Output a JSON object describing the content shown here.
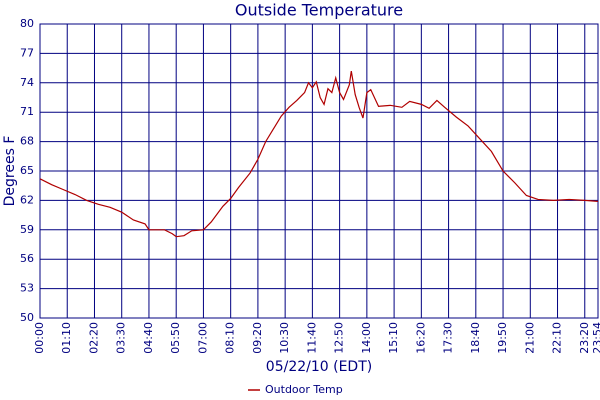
{
  "chart_data": {
    "type": "line",
    "title": "Outside Temperature",
    "x_label": "05/22/10 (EDT)",
    "y_label": "Degrees F",
    "x": [
      0,
      30,
      60,
      90,
      120,
      150,
      180,
      210,
      240,
      270,
      280,
      300,
      320,
      340,
      350,
      370,
      390,
      420,
      440,
      470,
      490,
      510,
      540,
      560,
      580,
      600,
      620,
      640,
      660,
      680,
      690,
      700,
      710,
      720,
      730,
      740,
      750,
      760,
      770,
      780,
      795,
      800,
      810,
      820,
      830,
      840,
      850,
      870,
      900,
      930,
      950,
      980,
      1000,
      1020,
      1040,
      1070,
      1100,
      1130,
      1160,
      1190,
      1220,
      1250,
      1280,
      1320,
      1360,
      1400,
      1434
    ],
    "series": [
      {
        "name": "Outdoor Temp",
        "color": "#b00000",
        "values": [
          64.2,
          63.6,
          63.1,
          62.6,
          62.0,
          61.6,
          61.3,
          60.8,
          60.0,
          59.6,
          59.0,
          59.0,
          59.0,
          58.6,
          58.3,
          58.4,
          58.9,
          59.0,
          59.8,
          61.4,
          62.2,
          63.3,
          64.8,
          66.2,
          68.0,
          69.3,
          70.6,
          71.5,
          72.2,
          73.0,
          74.0,
          73.5,
          74.1,
          72.5,
          71.8,
          73.4,
          73.0,
          74.5,
          73.0,
          72.3,
          73.8,
          75.2,
          72.8,
          71.5,
          70.4,
          73.0,
          73.3,
          71.6,
          71.7,
          71.5,
          72.1,
          71.8,
          71.4,
          72.2,
          71.5,
          70.5,
          69.6,
          68.3,
          67.0,
          65.0,
          63.8,
          62.5,
          62.1,
          62.0,
          62.1,
          62.0,
          61.9
        ]
      }
    ],
    "xlim": [
      0,
      1434
    ],
    "xticks": [
      {
        "value": 0,
        "label": "00:00"
      },
      {
        "value": 70,
        "label": "01:10"
      },
      {
        "value": 140,
        "label": "02:20"
      },
      {
        "value": 210,
        "label": "03:30"
      },
      {
        "value": 280,
        "label": "04:40"
      },
      {
        "value": 350,
        "label": "05:50"
      },
      {
        "value": 420,
        "label": "07:00"
      },
      {
        "value": 490,
        "label": "08:10"
      },
      {
        "value": 560,
        "label": "09:20"
      },
      {
        "value": 630,
        "label": "10:30"
      },
      {
        "value": 700,
        "label": "11:40"
      },
      {
        "value": 770,
        "label": "12:50"
      },
      {
        "value": 840,
        "label": "14:00"
      },
      {
        "value": 910,
        "label": "15:10"
      },
      {
        "value": 980,
        "label": "16:20"
      },
      {
        "value": 1050,
        "label": "17:30"
      },
      {
        "value": 1120,
        "label": "18:40"
      },
      {
        "value": 1190,
        "label": "19:50"
      },
      {
        "value": 1260,
        "label": "21:00"
      },
      {
        "value": 1330,
        "label": "22:10"
      },
      {
        "value": 1400,
        "label": "23:20"
      },
      {
        "value": 1434,
        "label": "23:54"
      }
    ],
    "ylim": [
      50,
      80
    ],
    "yticks": [
      50,
      53,
      56,
      59,
      62,
      65,
      68,
      71,
      74,
      77,
      80
    ],
    "grid": true
  }
}
